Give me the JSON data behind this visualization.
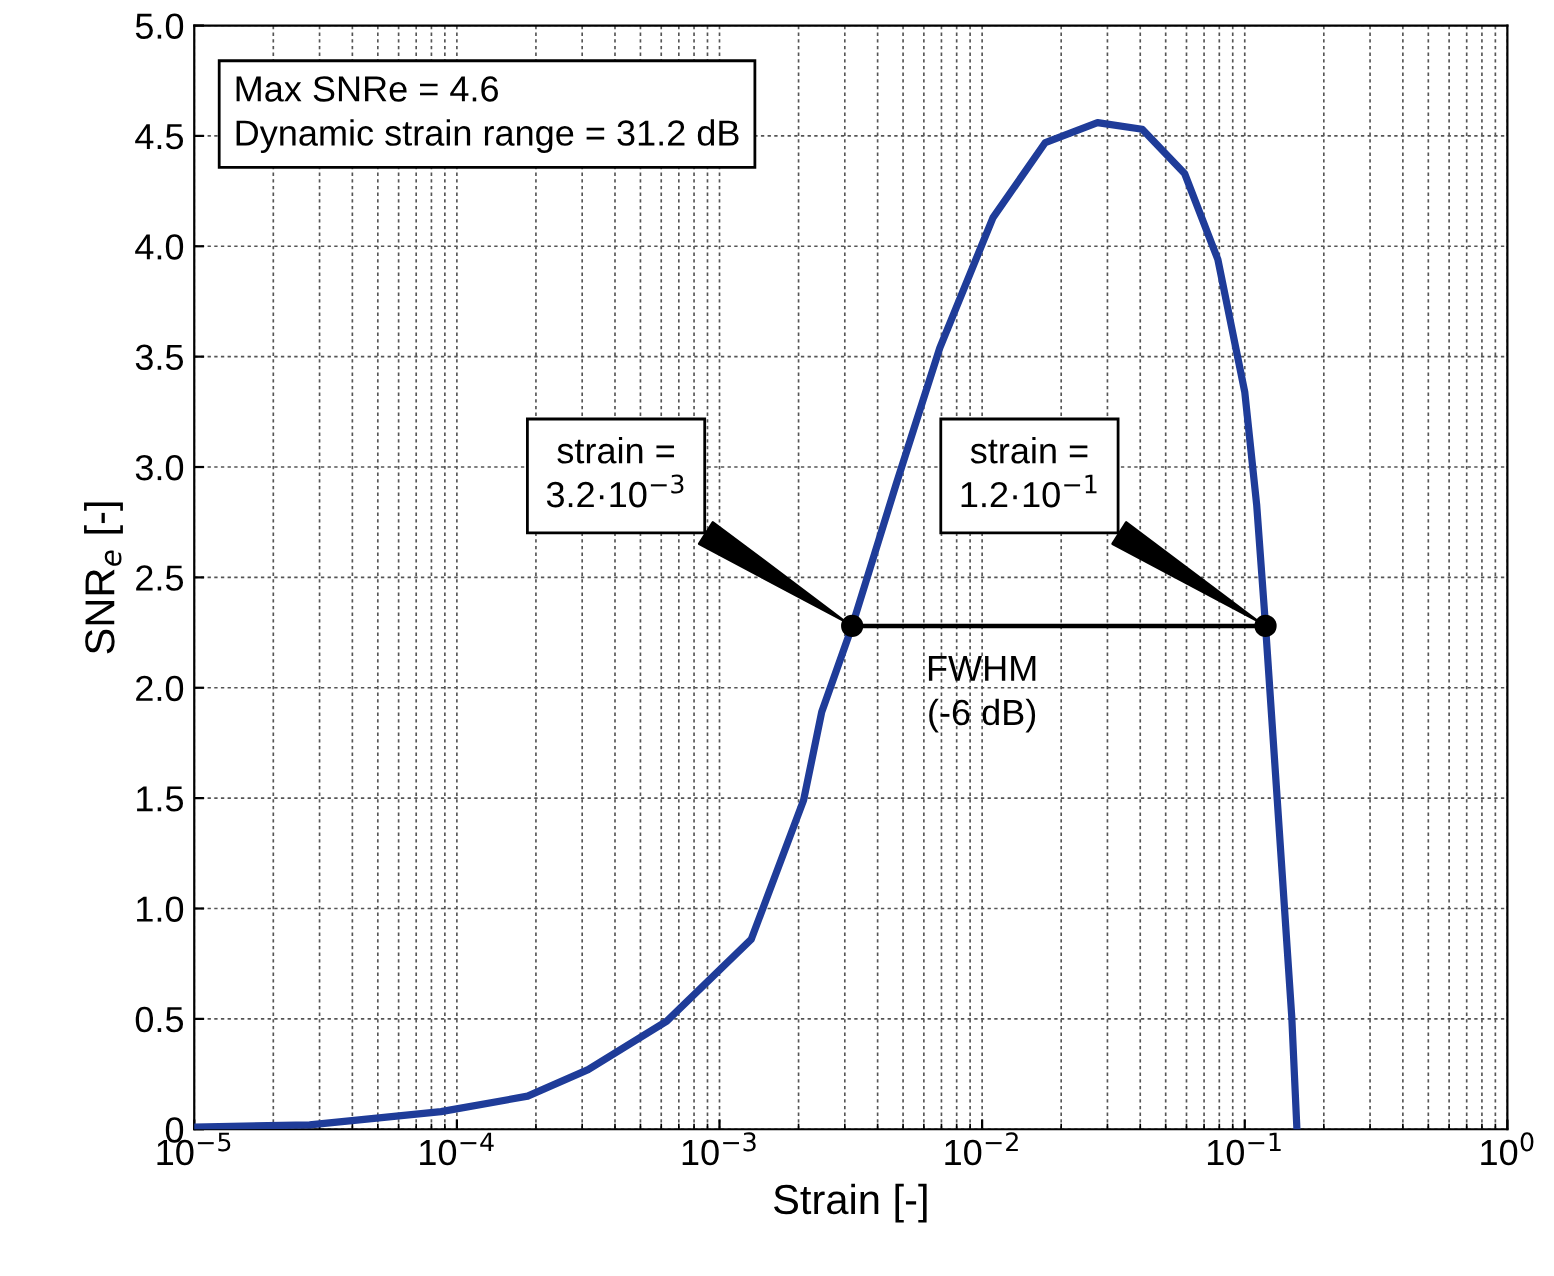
{
  "chart_data": {
    "type": "line",
    "xlabel": "Strain [-]",
    "ylabel": "SNR$_{e}$ [-]",
    "log": "x",
    "xlim": [
      1e-05,
      1
    ],
    "ylim": [
      0,
      5
    ],
    "xticks": [
      {
        "value": 1e-05,
        "label": "10$^{−5}$"
      },
      {
        "value": 0.0001,
        "label": "10$^{−4}$"
      },
      {
        "value": 0.001,
        "label": "10$^{−3}$"
      },
      {
        "value": 0.01,
        "label": "10$^{−2}$"
      },
      {
        "value": 0.1,
        "label": "10$^{−1}$"
      },
      {
        "value": 1,
        "label": "10$^{0}$"
      }
    ],
    "yticks": [
      0,
      0.5,
      {
        "value": 1,
        "label": "1.0"
      },
      1.5,
      {
        "value": 2,
        "label": "2.0"
      },
      2.5,
      {
        "value": 3,
        "label": "3.0"
      },
      3.5,
      {
        "value": 4,
        "label": "4.0"
      },
      4.5,
      {
        "value": 5,
        "label": "5.0"
      }
    ],
    "grid": true,
    "legend": false,
    "series": [
      {
        "color": "#1f3c99",
        "marker": "none",
        "x": [
          1e-05,
          2.75e-05,
          8.7e-05,
          0.000186,
          0.000316,
          0.00063,
          0.00132,
          0.00209,
          0.00245,
          0.0032,
          0.0047,
          0.0069,
          0.011,
          0.0174,
          0.0275,
          0.0407,
          0.059,
          0.079,
          0.1,
          0.111,
          0.12,
          0.133,
          0.151,
          0.158
        ],
        "values": [
          0.01,
          0.02,
          0.08,
          0.15,
          0.27,
          0.49,
          0.86,
          1.49,
          1.89,
          2.28,
          2.92,
          3.54,
          4.13,
          4.47,
          4.56,
          4.53,
          4.33,
          3.94,
          3.34,
          2.83,
          2.28,
          1.49,
          0.51,
          0
        ]
      },
      {
        "color": "#000000",
        "marker": "circle",
        "x": [
          0.0032,
          0.12
        ],
        "values": [
          2.28,
          2.28
        ]
      }
    ],
    "annotations": [
      "Max SNRe = 4.6\nDynamic strain range = 31.2 dB",
      "strain =\n3.2·10$^{−3}$",
      "strain =\n1.2·10$^{−1}$",
      "FWHM\n(-6 dB)"
    ]
  }
}
